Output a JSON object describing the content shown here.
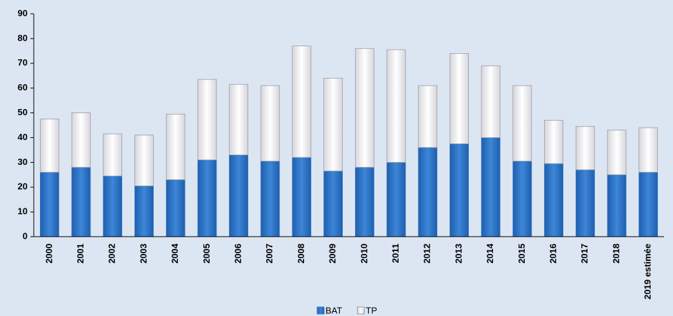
{
  "chart_data": {
    "type": "stacked_bar",
    "categories": [
      "2000",
      "2001",
      "2002",
      "2003",
      "2004",
      "2005",
      "2006",
      "2007",
      "2008",
      "2009",
      "2010",
      "2011",
      "2012",
      "2013",
      "2014",
      "2015",
      "2016",
      "2017",
      "2018",
      "2019 estimée"
    ],
    "series": [
      {
        "name": "BAT",
        "color": "#2f74c7",
        "values": [
          26,
          28,
          24.5,
          20.5,
          23,
          31,
          33,
          30.5,
          32,
          26.5,
          28,
          30,
          36,
          37.5,
          40,
          30.5,
          29.5,
          27,
          25,
          26
        ]
      },
      {
        "name": "TP",
        "color": "#f4f4f6",
        "values": [
          21.5,
          22,
          17,
          20.5,
          26.5,
          32.5,
          28.5,
          30.5,
          45,
          37.5,
          48,
          45.5,
          25,
          36.5,
          29,
          30.5,
          17.5,
          17.5,
          18,
          18
        ]
      }
    ],
    "ylim": [
      0,
      90
    ],
    "yticks": [
      0,
      10,
      20,
      30,
      40,
      50,
      60,
      70,
      80,
      90
    ],
    "legend": "bottom"
  }
}
